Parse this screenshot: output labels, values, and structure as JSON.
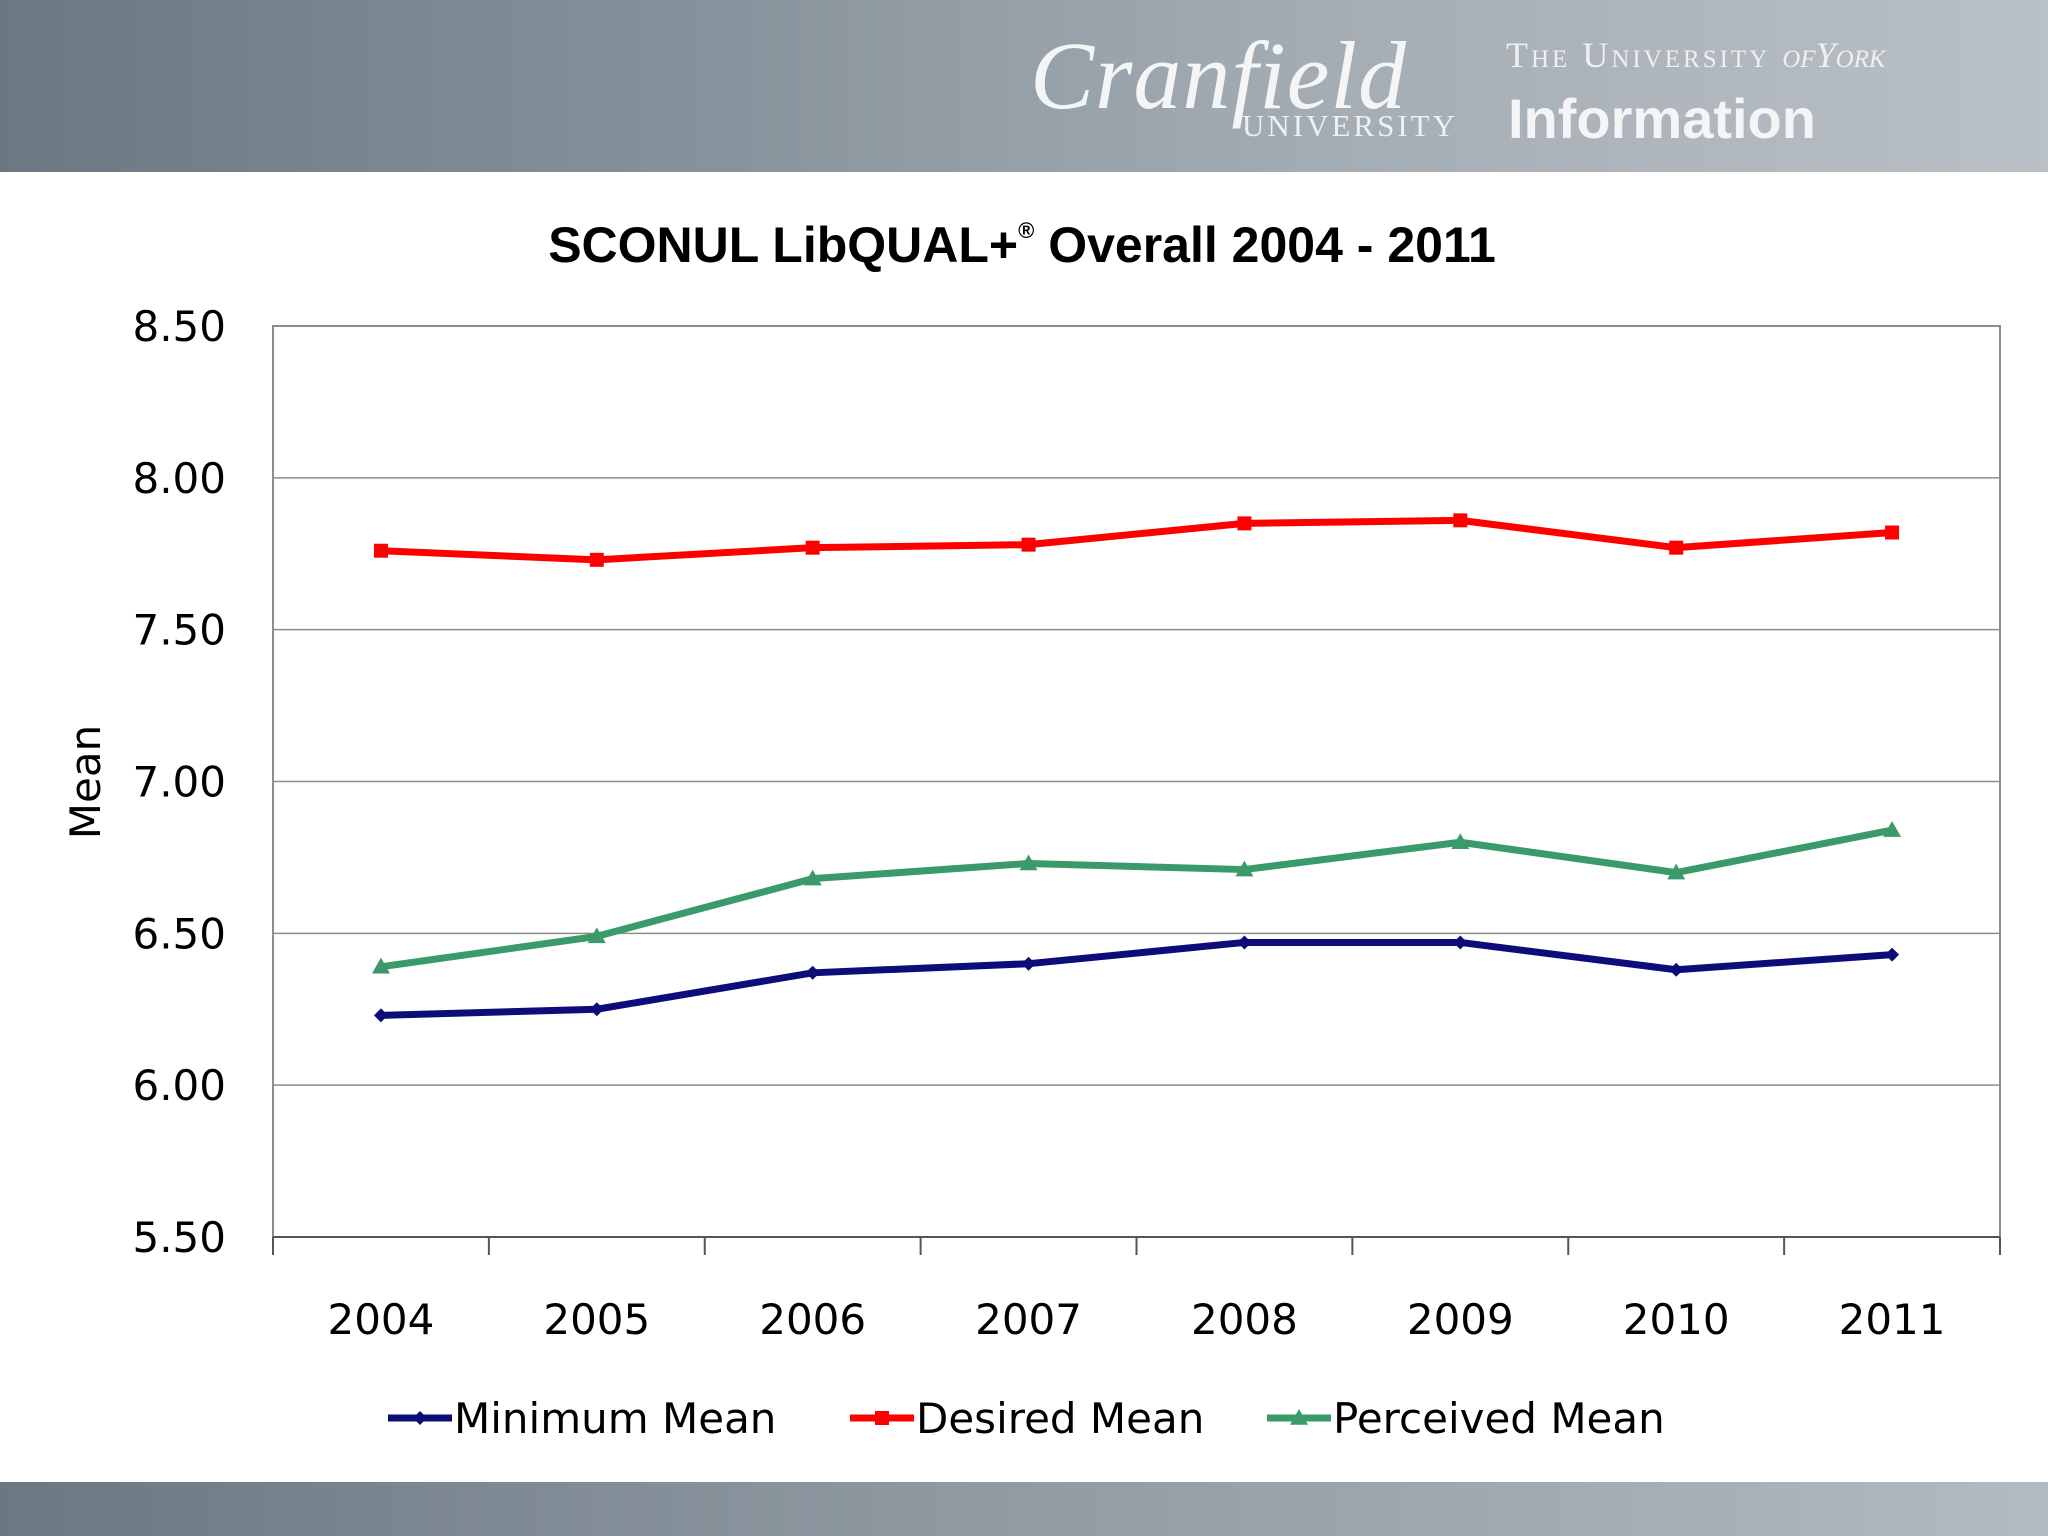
{
  "header": {
    "cranfield_script": "Cranfield",
    "cranfield_sub": "UNIVERSITY",
    "york_prefix": "The University ",
    "york_of": "of",
    "york_name": "York",
    "york_dept": "Information"
  },
  "colors": {
    "minimum": "#0d0d7a",
    "desired": "#ff0000",
    "perceived": "#3a9a6a",
    "gridline": "#8c8c8c",
    "axis": "#555555"
  },
  "chart_data": {
    "type": "line",
    "title": "SCONUL LibQUAL+",
    "title_sup": "®",
    "title_rest": " Overall 2004 - 2011",
    "xlabel": "",
    "ylabel": "Mean",
    "categories": [
      "2004",
      "2005",
      "2006",
      "2007",
      "2008",
      "2009",
      "2010",
      "2011"
    ],
    "ylim": [
      5.5,
      8.5
    ],
    "yticks": [
      "5.50",
      "6.00",
      "6.50",
      "7.00",
      "7.50",
      "8.00",
      "8.50"
    ],
    "grid": true,
    "legend_position": "bottom",
    "series": [
      {
        "name": "Minimum Mean",
        "marker": "diamond",
        "color_key": "minimum",
        "values": [
          6.23,
          6.25,
          6.37,
          6.4,
          6.47,
          6.47,
          6.38,
          6.43
        ]
      },
      {
        "name": "Desired Mean",
        "marker": "square",
        "color_key": "desired",
        "values": [
          7.76,
          7.73,
          7.77,
          7.78,
          7.85,
          7.86,
          7.77,
          7.82
        ]
      },
      {
        "name": "Perceived Mean",
        "marker": "triangle",
        "color_key": "perceived",
        "values": [
          6.39,
          6.49,
          6.68,
          6.73,
          6.71,
          6.8,
          6.7,
          6.84
        ]
      }
    ]
  }
}
